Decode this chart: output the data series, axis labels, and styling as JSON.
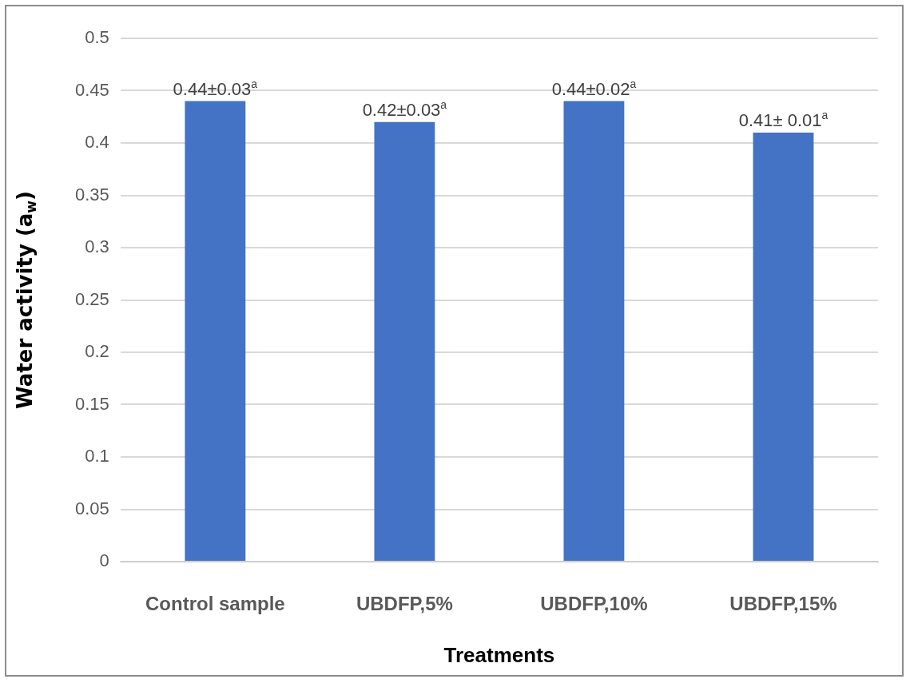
{
  "chart_data": {
    "type": "bar",
    "xlabel": "Treatments",
    "ylabel": "Water activity (a$_{w}$)",
    "categories": [
      "Control sample",
      "UBDFP,5%",
      "UBDFP,10%",
      "UBDFP,15%"
    ],
    "values": [
      0.44,
      0.42,
      0.44,
      0.41
    ],
    "color": "#4472c4",
    "value_labels": [
      "0.44±0.03$^{a}$",
      "0.42±0.03$^{a}$",
      "0.44±0.02$^{a}$",
      "0.41± 0.01$^{a}$"
    ],
    "ylim": [
      0,
      0.5
    ],
    "yticks": [
      0,
      0.05,
      0.1,
      0.15,
      0.2,
      0.25,
      0.3,
      0.35,
      0.4,
      0.45,
      0.5
    ],
    "grid": "y",
    "legend": false
  }
}
